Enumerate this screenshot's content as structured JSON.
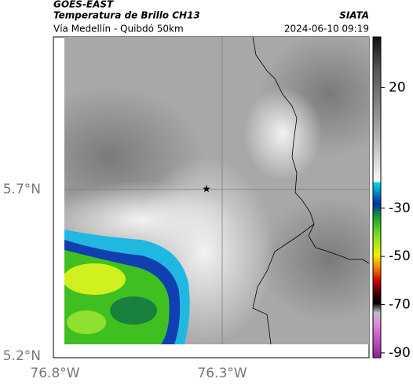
{
  "header": {
    "source": "GOES-EAST",
    "product": "Temperatura de Brillo CH13",
    "agency": "SIATA",
    "route": "Vía Medellín - Quibdó 50km",
    "timestamp": "2024-06-10 09:19"
  },
  "map": {
    "lat_labels": [
      "5.7°N",
      "5.2°N"
    ],
    "lon_labels": [
      "76.8°W",
      "76.3°W"
    ]
  },
  "colorbar": {
    "lim": [
      -92,
      41
    ],
    "ticks": [
      20,
      -30,
      -50,
      -70,
      -90
    ]
  }
}
